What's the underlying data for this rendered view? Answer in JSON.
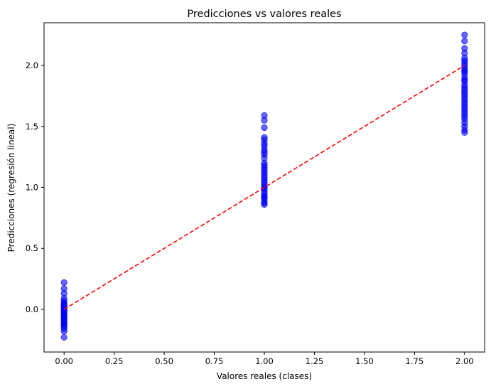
{
  "chart_data": {
    "type": "scatter",
    "title": "Predicciones vs valores reales",
    "xlabel": "Valores reales (clases)",
    "ylabel": "Predicciones (regresión lineal)",
    "xlim": [
      -0.1,
      2.1
    ],
    "ylim": [
      -0.35,
      2.35
    ],
    "x_ticks": [
      0.0,
      0.25,
      0.5,
      0.75,
      1.0,
      1.25,
      1.5,
      1.75,
      2.0
    ],
    "x_tick_labels": [
      "0.00",
      "0.25",
      "0.50",
      "0.75",
      "1.00",
      "1.25",
      "1.50",
      "1.75",
      "2.00"
    ],
    "y_ticks": [
      0.0,
      0.5,
      1.0,
      1.5,
      2.0
    ],
    "y_tick_labels": [
      "0.0",
      "0.5",
      "1.0",
      "1.5",
      "2.0"
    ],
    "grid": false,
    "point_color": "#0000ff",
    "point_alpha": 0.6,
    "line_color": "#ff0000",
    "series": [
      {
        "x": [
          0,
          0,
          0,
          0,
          0,
          0,
          0,
          0,
          0,
          0,
          0,
          0,
          0,
          0,
          0,
          0,
          0,
          0,
          0,
          0,
          0,
          0,
          0,
          0,
          0,
          0,
          0,
          0
        ],
        "y": [
          0.22,
          0.17,
          0.13,
          0.09,
          0.07,
          0.05,
          0.04,
          0.03,
          0.02,
          0.01,
          0.0,
          -0.01,
          -0.02,
          -0.03,
          -0.04,
          -0.05,
          -0.06,
          -0.07,
          -0.08,
          -0.09,
          -0.1,
          -0.11,
          -0.12,
          -0.13,
          -0.14,
          -0.16,
          -0.18,
          -0.23
        ]
      },
      {
        "x": [
          1,
          1,
          1,
          1,
          1,
          1,
          1,
          1,
          1,
          1,
          1,
          1,
          1,
          1,
          1,
          1,
          1,
          1,
          1,
          1,
          1,
          1,
          1,
          1,
          1,
          1,
          1,
          1,
          1,
          1,
          1
        ],
        "y": [
          1.59,
          1.55,
          1.49,
          1.41,
          1.39,
          1.36,
          1.34,
          1.31,
          1.29,
          1.27,
          1.24,
          1.2,
          1.18,
          1.16,
          1.14,
          1.12,
          1.1,
          1.08,
          1.06,
          1.04,
          1.02,
          1.0,
          0.99,
          0.97,
          0.95,
          0.93,
          0.92,
          0.91,
          0.89,
          0.87,
          0.86
        ]
      },
      {
        "x": [
          2,
          2,
          2,
          2,
          2,
          2,
          2,
          2,
          2,
          2,
          2,
          2,
          2,
          2,
          2,
          2,
          2,
          2,
          2,
          2,
          2,
          2,
          2,
          2,
          2,
          2,
          2,
          2,
          2,
          2,
          2,
          2,
          2,
          2
        ],
        "y": [
          2.25,
          2.2,
          2.14,
          2.1,
          2.06,
          2.04,
          2.02,
          2.0,
          1.98,
          1.96,
          1.93,
          1.9,
          1.87,
          1.84,
          1.82,
          1.8,
          1.78,
          1.76,
          1.74,
          1.72,
          1.7,
          1.68,
          1.66,
          1.64,
          1.62,
          1.6,
          1.58,
          1.56,
          1.53,
          1.5,
          1.47,
          1.45,
          1.95,
          1.88
        ]
      }
    ],
    "reference_line": {
      "x": [
        0,
        2
      ],
      "y": [
        0,
        2
      ],
      "style": "dashed"
    }
  }
}
